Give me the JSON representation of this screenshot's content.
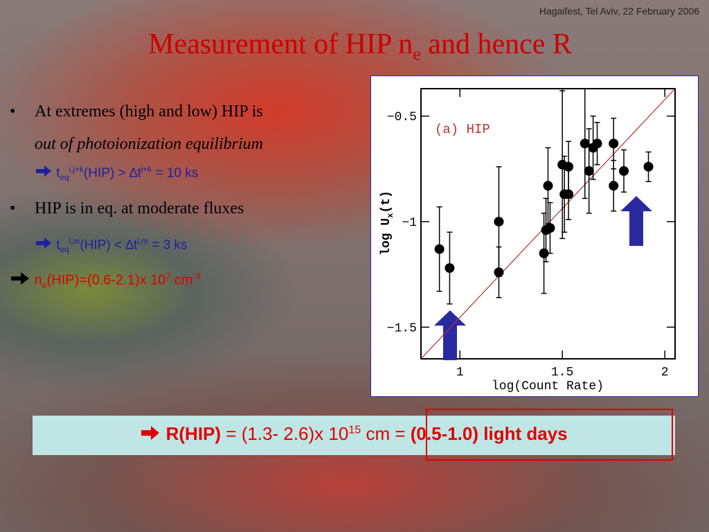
{
  "header": {
    "note": "Hagaifest, Tel Aviv, 22 February 2006"
  },
  "title": {
    "parts": [
      "Measurement of HIP n",
      "e",
      " and hence R"
    ]
  },
  "bullets": [
    {
      "lines": [
        "At extremes (high and low) HIP is",
        "out of photoionization equilibrium"
      ],
      "result": [
        "t",
        "eq",
        "i,j+k",
        "(HIP) > ∆t",
        "j+k",
        " = 10 ks"
      ]
    },
    {
      "lines": [
        "HIP is in eq. at moderate fluxes"
      ],
      "result": [
        "t",
        "eq",
        "l,m",
        "(HIP) < ∆t",
        "l,m",
        " = 3 ks"
      ]
    }
  ],
  "conclusion": [
    "n",
    "e",
    "(HIP)=(0.6-2.1)x 10",
    "7",
    " cm",
    "-3"
  ],
  "box": {
    "parts": [
      "R(HIP)",
      " = (1.3- 2.6)x 10",
      "15",
      " cm = ",
      "(0.5-1.0) light days"
    ]
  },
  "chart_data": {
    "type": "scatter",
    "annotation": "(a)  HIP",
    "xlabel": "log(Count Rate)",
    "ylabel_parts": [
      "log U",
      "x",
      "(t)"
    ],
    "x": [
      0.9,
      0.95,
      1.19,
      1.19,
      1.41,
      1.42,
      1.44,
      1.43,
      1.5,
      1.51,
      1.53,
      1.53,
      1.61,
      1.63,
      1.65,
      1.67,
      1.75,
      1.75,
      1.8,
      1.92
    ],
    "values": [
      -1.13,
      -1.22,
      -1.0,
      -1.24,
      -1.15,
      -1.04,
      -1.03,
      -0.83,
      -0.73,
      -0.87,
      -0.74,
      -0.87,
      -0.63,
      -0.76,
      -0.65,
      -0.63,
      -0.63,
      -0.83,
      -0.76,
      -0.74
    ],
    "errors": [
      0.2,
      0.17,
      0.26,
      0.12,
      0.19,
      0.15,
      0.12,
      0.18,
      0.35,
      0.18,
      0.12,
      0.12,
      0.26,
      0.2,
      0.15,
      0.1,
      0.12,
      0.12,
      0.1,
      0.07
    ],
    "color": "#000000",
    "reference_line": {
      "x": [
        0.81,
        2.05
      ],
      "y": [
        -1.65,
        -0.37
      ],
      "color": "#b03030"
    },
    "xlim": [
      0.81,
      2.05
    ],
    "ylim": [
      -1.65,
      -0.37
    ],
    "xticks": [
      1,
      1.5,
      2
    ],
    "yticks": [
      {
        "value": -0.5,
        "label": "−0.5"
      },
      {
        "value": -1,
        "label": "−1"
      },
      {
        "value": -1.5,
        "label": "−1.5"
      }
    ]
  }
}
